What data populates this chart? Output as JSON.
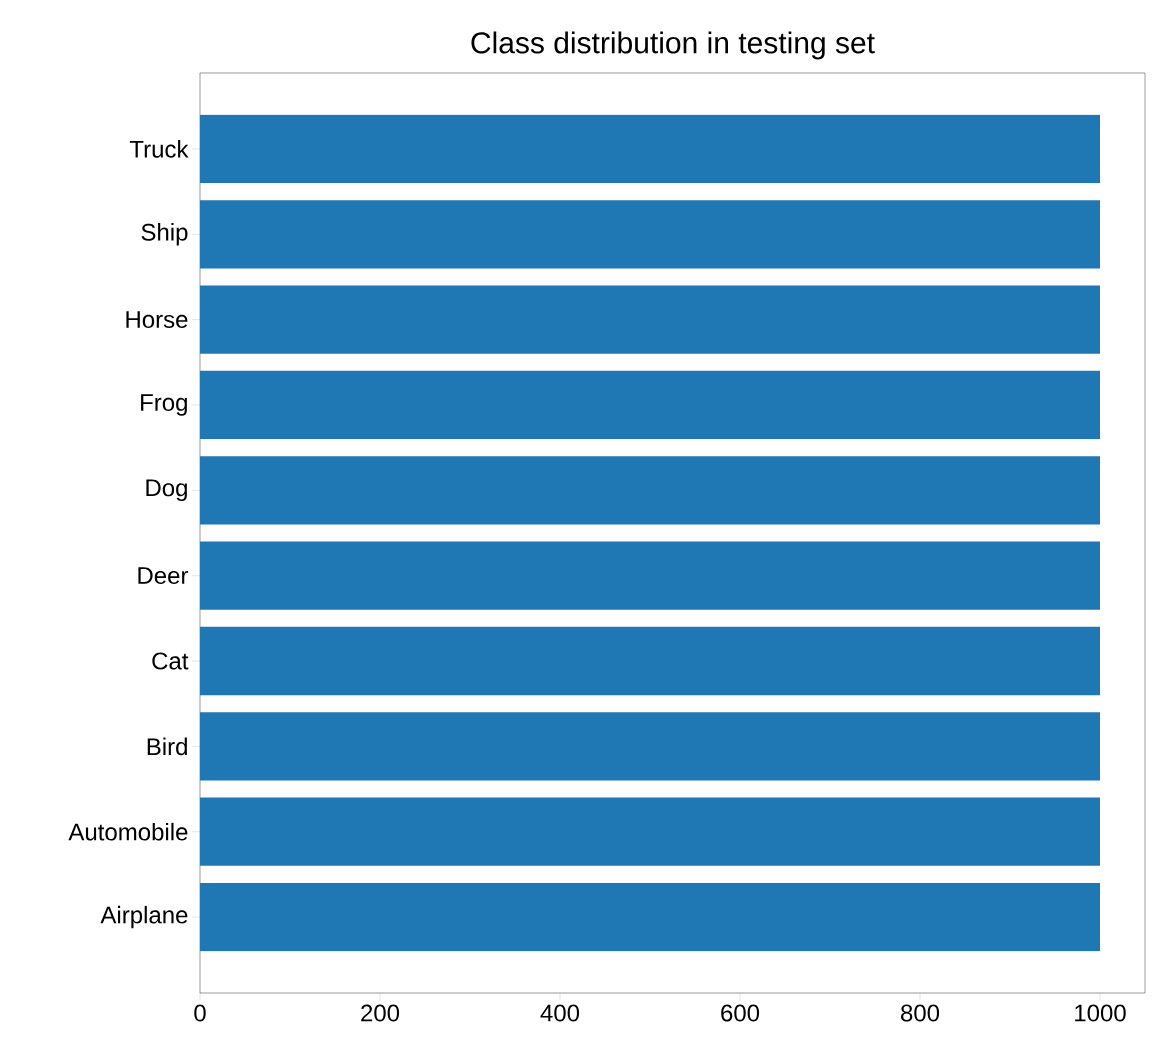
{
  "chart_data": {
    "type": "bar",
    "orientation": "horizontal",
    "title": "Class distribution in testing set",
    "categories": [
      "Truck",
      "Ship",
      "Horse",
      "Frog",
      "Dog",
      "Deer",
      "Cat",
      "Bird",
      "Automobile",
      "Airplane"
    ],
    "values": [
      1000,
      1000,
      1000,
      1000,
      1000,
      1000,
      1000,
      1000,
      1000,
      1000
    ],
    "color": "#1f77b4",
    "xlim": [
      0,
      1050
    ],
    "xticks": [
      0,
      200,
      400,
      600,
      800,
      1000
    ],
    "grid": false
  }
}
